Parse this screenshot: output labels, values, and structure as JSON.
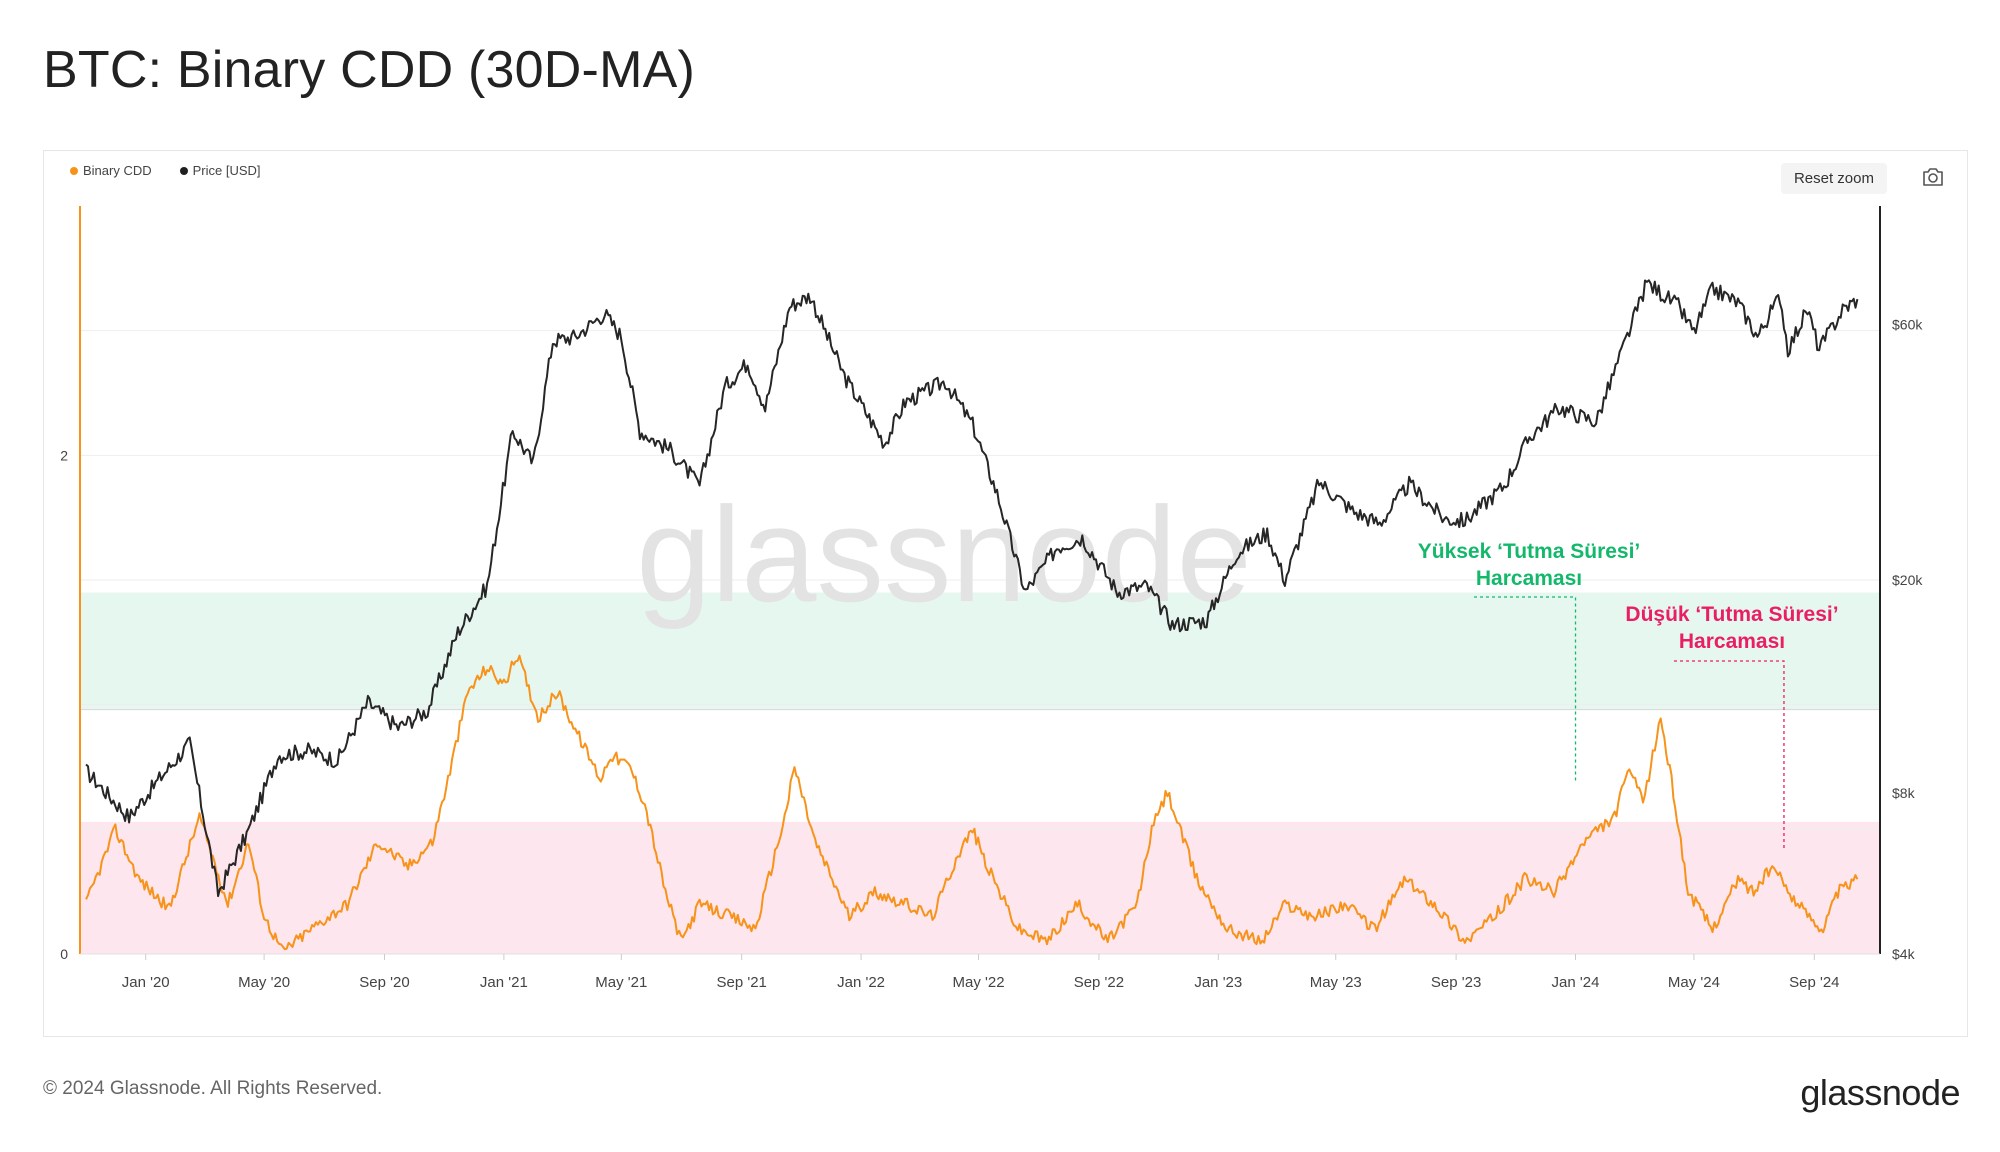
{
  "title": "BTC: Binary CDD (30D-MA)",
  "legend": [
    {
      "label": "Binary CDD",
      "color": "#f7931a"
    },
    {
      "label": "Price [USD]",
      "color": "#1f1f1f"
    }
  ],
  "toolbar": {
    "reset_zoom_label": "Reset zoom",
    "camera_icon": "camera-icon"
  },
  "watermark": "glassnode",
  "footer": {
    "copyright": "© 2024 Glassnode. All Rights Reserved.",
    "logo": "glassnode"
  },
  "colors": {
    "cdd": "#f7931a",
    "price": "#262626",
    "green_zone": "#e6f7f0",
    "pink_zone": "#fde6ee",
    "green_text": "#14b86b",
    "pink_text": "#e91e63"
  },
  "chart_data": {
    "type": "line",
    "x_range": [
      "2019-11-01",
      "2024-11-01"
    ],
    "x_ticks": [
      "Jan '20",
      "May '20",
      "Sep '20",
      "Jan '21",
      "May '21",
      "Sep '21",
      "Jan '22",
      "May '22",
      "Sep '22",
      "Jan '23",
      "May '23",
      "Sep '23",
      "Jan '24",
      "May '24",
      "Sep '24"
    ],
    "y_left": {
      "ticks": [
        "0",
        "2"
      ],
      "range": [
        0,
        3
      ]
    },
    "y_right": {
      "scale": "log",
      "ticks": [
        "$4k",
        "$8k",
        "$20k",
        "$60k"
      ],
      "tick_values": [
        4000,
        8000,
        20000,
        60000
      ],
      "range": [
        4000,
        100000
      ]
    },
    "zones": [
      {
        "name": "green-zone",
        "from": 0.98,
        "to": 1.45
      },
      {
        "name": "pink-zone",
        "from": 0,
        "to": 0.53
      }
    ],
    "series": [
      {
        "name": "Price [USD]",
        "axis": "right",
        "points": [
          [
            "2019-11-01",
            8800
          ],
          [
            "2019-12-15",
            7200
          ],
          [
            "2020-01-15",
            8500
          ],
          [
            "2020-02-15",
            9900
          ],
          [
            "2020-03-15",
            5200
          ],
          [
            "2020-04-15",
            6800
          ],
          [
            "2020-05-15",
            9400
          ],
          [
            "2020-06-15",
            9600
          ],
          [
            "2020-07-15",
            9200
          ],
          [
            "2020-08-15",
            11800
          ],
          [
            "2020-09-15",
            10600
          ],
          [
            "2020-10-15",
            11400
          ],
          [
            "2020-11-15",
            16000
          ],
          [
            "2020-12-15",
            19500
          ],
          [
            "2021-01-10",
            38000
          ],
          [
            "2021-01-31",
            33000
          ],
          [
            "2021-02-20",
            56000
          ],
          [
            "2021-03-15",
            57000
          ],
          [
            "2021-04-14",
            63000
          ],
          [
            "2021-05-01",
            57000
          ],
          [
            "2021-05-20",
            38000
          ],
          [
            "2021-06-20",
            35000
          ],
          [
            "2021-07-20",
            30000
          ],
          [
            "2021-08-15",
            46000
          ],
          [
            "2021-09-07",
            51000
          ],
          [
            "2021-09-25",
            42000
          ],
          [
            "2021-10-20",
            65000
          ],
          [
            "2021-11-10",
            68000
          ],
          [
            "2021-12-15",
            48000
          ],
          [
            "2022-01-25",
            36000
          ],
          [
            "2022-02-15",
            43000
          ],
          [
            "2022-03-28",
            47000
          ],
          [
            "2022-04-25",
            39000
          ],
          [
            "2022-05-20",
            29000
          ],
          [
            "2022-06-18",
            19000
          ],
          [
            "2022-07-20",
            23000
          ],
          [
            "2022-08-15",
            24000
          ],
          [
            "2022-09-20",
            19000
          ],
          [
            "2022-10-20",
            19500
          ],
          [
            "2022-11-15",
            16500
          ],
          [
            "2022-12-20",
            16800
          ],
          [
            "2023-01-20",
            22500
          ],
          [
            "2023-02-20",
            24500
          ],
          [
            "2023-03-10",
            20000
          ],
          [
            "2023-04-14",
            30500
          ],
          [
            "2023-05-20",
            26800
          ],
          [
            "2023-06-15",
            25500
          ],
          [
            "2023-07-15",
            30200
          ],
          [
            "2023-08-20",
            26000
          ],
          [
            "2023-09-10",
            25800
          ],
          [
            "2023-10-20",
            30000
          ],
          [
            "2023-11-15",
            37000
          ],
          [
            "2023-12-15",
            42000
          ],
          [
            "2024-01-22",
            39500
          ],
          [
            "2024-02-15",
            52000
          ],
          [
            "2024-03-14",
            72000
          ],
          [
            "2024-04-15",
            65000
          ],
          [
            "2024-05-01",
            58000
          ],
          [
            "2024-05-20",
            70000
          ],
          [
            "2024-06-15",
            66000
          ],
          [
            "2024-07-05",
            57000
          ],
          [
            "2024-07-28",
            68000
          ],
          [
            "2024-08-05",
            54000
          ],
          [
            "2024-08-25",
            64000
          ],
          [
            "2024-09-06",
            54000
          ],
          [
            "2024-09-30",
            64000
          ],
          [
            "2024-10-15",
            67000
          ]
        ]
      },
      {
        "name": "Binary CDD",
        "axis": "left",
        "points": [
          [
            "2019-11-01",
            0.2
          ],
          [
            "2019-12-01",
            0.5
          ],
          [
            "2019-12-25",
            0.3
          ],
          [
            "2020-01-25",
            0.18
          ],
          [
            "2020-02-25",
            0.55
          ],
          [
            "2020-03-25",
            0.2
          ],
          [
            "2020-04-15",
            0.45
          ],
          [
            "2020-05-01",
            0.15
          ],
          [
            "2020-05-20",
            0.01
          ],
          [
            "2020-06-25",
            0.12
          ],
          [
            "2020-07-25",
            0.2
          ],
          [
            "2020-08-25",
            0.45
          ],
          [
            "2020-09-25",
            0.35
          ],
          [
            "2020-10-20",
            0.45
          ],
          [
            "2020-11-05",
            0.7
          ],
          [
            "2020-11-25",
            1.05
          ],
          [
            "2020-12-15",
            1.15
          ],
          [
            "2021-01-01",
            1.08
          ],
          [
            "2021-01-15",
            1.2
          ],
          [
            "2021-02-05",
            0.95
          ],
          [
            "2021-02-25",
            1.05
          ],
          [
            "2021-03-15",
            0.9
          ],
          [
            "2021-04-10",
            0.7
          ],
          [
            "2021-04-20",
            0.8
          ],
          [
            "2021-05-10",
            0.75
          ],
          [
            "2021-05-25",
            0.6
          ],
          [
            "2021-06-15",
            0.25
          ],
          [
            "2021-07-01",
            0.05
          ],
          [
            "2021-07-20",
            0.2
          ],
          [
            "2021-08-20",
            0.15
          ],
          [
            "2021-09-15",
            0.1
          ],
          [
            "2021-10-15",
            0.55
          ],
          [
            "2021-10-25",
            0.75
          ],
          [
            "2021-11-15",
            0.45
          ],
          [
            "2021-12-20",
            0.15
          ],
          [
            "2022-01-15",
            0.25
          ],
          [
            "2022-02-15",
            0.2
          ],
          [
            "2022-03-15",
            0.15
          ],
          [
            "2022-04-10",
            0.4
          ],
          [
            "2022-04-25",
            0.5
          ],
          [
            "2022-05-10",
            0.35
          ],
          [
            "2022-06-10",
            0.1
          ],
          [
            "2022-07-10",
            0.05
          ],
          [
            "2022-08-10",
            0.2
          ],
          [
            "2022-09-10",
            0.05
          ],
          [
            "2022-10-10",
            0.2
          ],
          [
            "2022-10-25",
            0.5
          ],
          [
            "2022-11-10",
            0.65
          ],
          [
            "2022-12-10",
            0.3
          ],
          [
            "2023-01-10",
            0.1
          ],
          [
            "2023-02-15",
            0.05
          ],
          [
            "2023-03-10",
            0.2
          ],
          [
            "2023-04-10",
            0.15
          ],
          [
            "2023-05-10",
            0.2
          ],
          [
            "2023-06-10",
            0.1
          ],
          [
            "2023-07-10",
            0.3
          ],
          [
            "2023-08-10",
            0.2
          ],
          [
            "2023-09-10",
            0.05
          ],
          [
            "2023-10-10",
            0.15
          ],
          [
            "2023-11-10",
            0.3
          ],
          [
            "2023-12-10",
            0.25
          ],
          [
            "2024-01-10",
            0.45
          ],
          [
            "2024-02-10",
            0.55
          ],
          [
            "2024-02-25",
            0.75
          ],
          [
            "2024-03-10",
            0.6
          ],
          [
            "2024-03-28",
            0.95
          ],
          [
            "2024-04-10",
            0.65
          ],
          [
            "2024-04-25",
            0.25
          ],
          [
            "2024-05-20",
            0.1
          ],
          [
            "2024-06-15",
            0.3
          ],
          [
            "2024-07-01",
            0.25
          ],
          [
            "2024-07-20",
            0.35
          ],
          [
            "2024-08-15",
            0.2
          ],
          [
            "2024-09-10",
            0.1
          ],
          [
            "2024-09-25",
            0.25
          ],
          [
            "2024-10-15",
            0.3
          ]
        ]
      }
    ],
    "annotations": [
      {
        "label_line1": "Yüksek ‘Tutma Süresi’",
        "label_line2": "Harcaması",
        "color": "#14b86b",
        "target_date": "2024-01-01"
      },
      {
        "label_line1": "Düşük ‘Tutma Süresi’",
        "label_line2": "Harcaması",
        "color": "#e91e63",
        "target_date": "2024-08-01"
      }
    ]
  }
}
